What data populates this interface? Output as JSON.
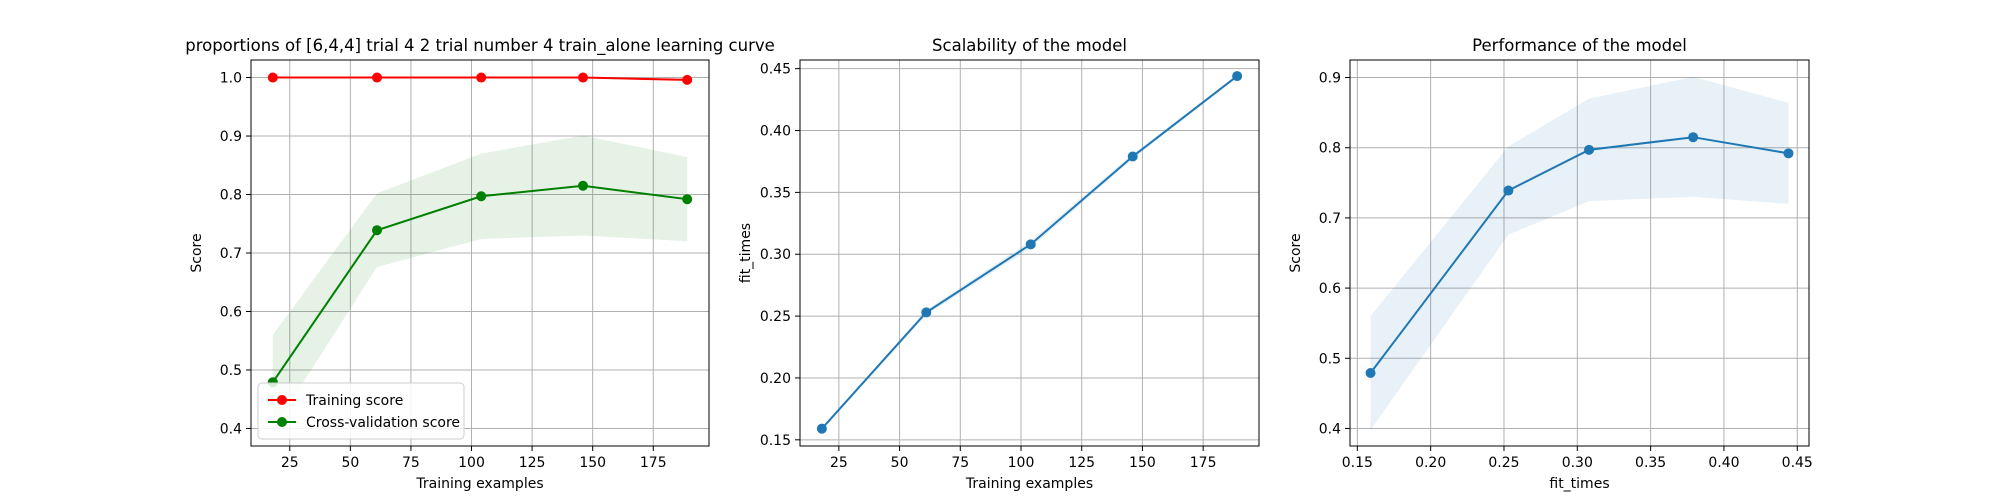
{
  "chart_data": [
    {
      "type": "line",
      "title": "proportions of [6,4,4] trial 4 2 trial number 4 train_alone learning curve",
      "xlabel": "Training examples",
      "ylabel": "Score",
      "xlim": [
        9,
        198
      ],
      "ylim": [
        0.37,
        1.03
      ],
      "xticks": [
        25,
        50,
        75,
        100,
        125,
        150,
        175
      ],
      "yticks": [
        0.4,
        0.5,
        0.6,
        0.7,
        0.8,
        0.9,
        1.0
      ],
      "ytick_format": 1,
      "grid": true,
      "legend_placement": "lower-left",
      "x": [
        18,
        61,
        104,
        146,
        189
      ],
      "series": [
        {
          "name": "Training score",
          "color": "#ff0000",
          "values": [
            1.0,
            1.0,
            1.0,
            1.0,
            0.996
          ],
          "band_lower": [
            1.0,
            1.0,
            0.999,
            0.999,
            0.993
          ],
          "band_upper": [
            1.0,
            1.0,
            1.0,
            1.0,
            0.999
          ]
        },
        {
          "name": "Cross-validation score",
          "color": "#008000",
          "values": [
            0.479,
            0.739,
            0.797,
            0.815,
            0.792
          ],
          "band_lower": [
            0.398,
            0.676,
            0.724,
            0.73,
            0.72
          ],
          "band_upper": [
            0.56,
            0.802,
            0.87,
            0.901,
            0.864
          ]
        }
      ]
    },
    {
      "type": "line",
      "title": "Scalability of the model",
      "xlabel": "Training examples",
      "ylabel": "fit_times",
      "xlim": [
        9,
        198
      ],
      "ylim": [
        0.145,
        0.457
      ],
      "xticks": [
        25,
        50,
        75,
        100,
        125,
        150,
        175
      ],
      "yticks": [
        0.15,
        0.2,
        0.25,
        0.3,
        0.35,
        0.4,
        0.45
      ],
      "ytick_format": 2,
      "grid": true,
      "x": [
        18,
        61,
        104,
        146,
        189
      ],
      "series": [
        {
          "color": "#1f77b4",
          "values": [
            0.159,
            0.253,
            0.308,
            0.379,
            0.444
          ],
          "band_lower": [
            0.158,
            0.251,
            0.305,
            0.377,
            0.443
          ],
          "band_upper": [
            0.16,
            0.255,
            0.311,
            0.381,
            0.445
          ]
        }
      ]
    },
    {
      "type": "line",
      "title": "Performance of the model",
      "xlabel": "fit_times",
      "ylabel": "Score",
      "xlim": [
        0.145,
        0.458
      ],
      "ylim": [
        0.375,
        0.925
      ],
      "xticks": [
        0.15,
        0.2,
        0.25,
        0.3,
        0.35,
        0.4,
        0.45
      ],
      "yticks": [
        0.4,
        0.5,
        0.6,
        0.7,
        0.8,
        0.9
      ],
      "xtick_format": 2,
      "ytick_format": 1,
      "grid": true,
      "x": [
        0.159,
        0.253,
        0.308,
        0.379,
        0.444
      ],
      "series": [
        {
          "color": "#1f77b4",
          "values": [
            0.479,
            0.739,
            0.797,
            0.815,
            0.792
          ],
          "band_lower": [
            0.398,
            0.676,
            0.724,
            0.73,
            0.72
          ],
          "band_upper": [
            0.56,
            0.802,
            0.87,
            0.901,
            0.864
          ]
        }
      ]
    }
  ]
}
